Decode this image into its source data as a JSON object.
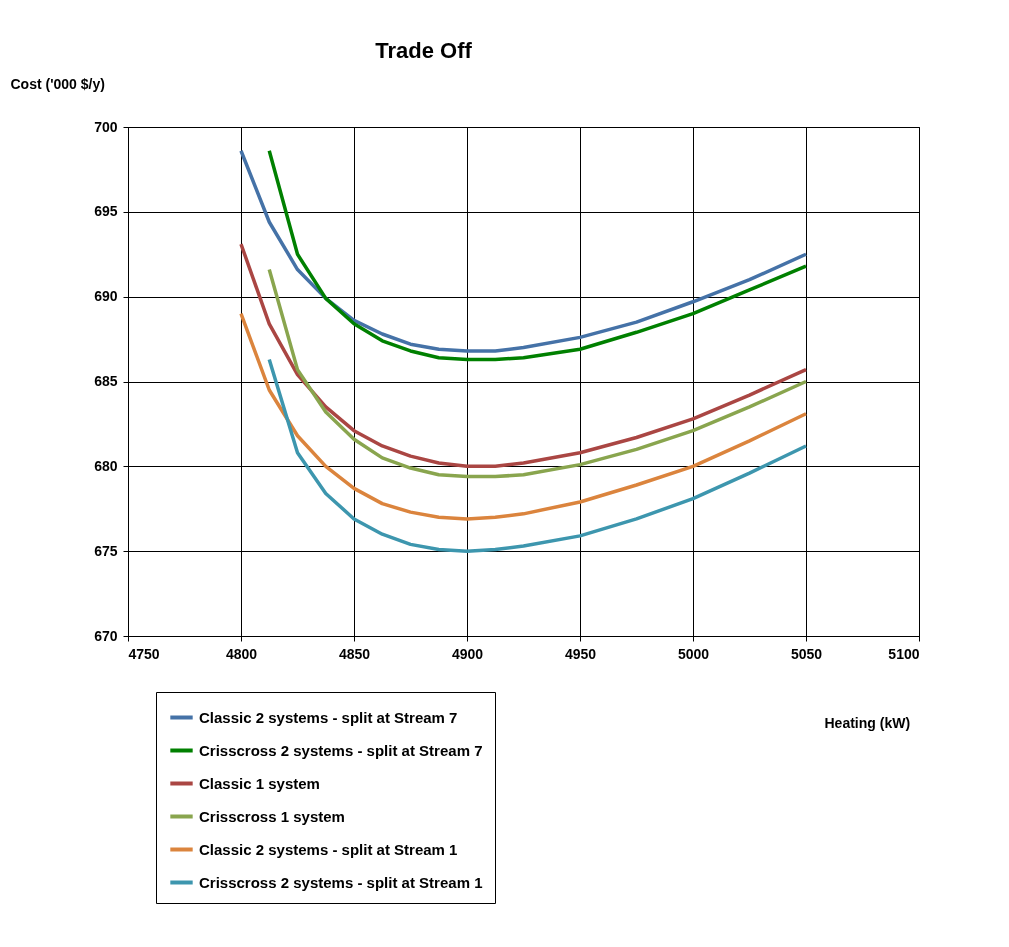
{
  "chart_data": {
    "type": "line",
    "title": "Trade Off",
    "xlabel": "Heating (kW)",
    "ylabel": "Cost ('000 $/y)",
    "xlim": [
      4750,
      5100
    ],
    "xticks": [
      4750,
      4800,
      4850,
      4900,
      4950,
      5000,
      5050,
      5100
    ],
    "ylim": [
      670,
      700
    ],
    "yticks": [
      670,
      675,
      680,
      685,
      690,
      695,
      700
    ],
    "grid": true,
    "legend": "bottom",
    "marker": "none",
    "line_style": "solid",
    "series": [
      {
        "name": "Classic 2 systems - split at Stream 7",
        "color": "#4572a7",
        "x": [
          4800,
          4812.5,
          4825,
          4837.5,
          4850,
          4862.5,
          4875,
          4887.5,
          4900,
          4912.5,
          4925,
          4950,
          4975,
          5000,
          5025,
          5050
        ],
        "values": [
          698.6,
          694.4,
          691.6,
          689.9,
          688.6,
          687.8,
          687.2,
          686.9,
          686.8,
          686.8,
          687.0,
          687.6,
          688.5,
          689.7,
          691.0,
          692.5
        ]
      },
      {
        "name": "Crisscross 2 systems - split at Stream 7",
        "color": "#008000",
        "x": [
          4812.5,
          4825,
          4837.5,
          4850,
          4862.5,
          4875,
          4887.5,
          4900,
          4912.5,
          4925,
          4950,
          4975,
          5000,
          5025,
          5050
        ],
        "values": [
          698.6,
          692.5,
          689.9,
          688.4,
          687.4,
          686.8,
          686.4,
          686.3,
          686.3,
          686.4,
          686.9,
          687.9,
          689.0,
          690.4,
          691.8
        ]
      },
      {
        "name": "Classic 1 system",
        "color": "#aa4643",
        "x": [
          4800,
          4812.5,
          4825,
          4837.5,
          4850,
          4862.5,
          4875,
          4887.5,
          4900,
          4912.5,
          4925,
          4950,
          4975,
          5000,
          5025,
          5050
        ],
        "values": [
          693.1,
          688.4,
          685.4,
          683.5,
          682.1,
          681.2,
          680.6,
          680.2,
          680.0,
          680.0,
          680.2,
          680.8,
          681.7,
          682.8,
          684.2,
          685.7
        ]
      },
      {
        "name": "Crisscross 1 system",
        "color": "#89a54e",
        "x": [
          4812.5,
          4825,
          4837.5,
          4850,
          4862.5,
          4875,
          4887.5,
          4900,
          4912.5,
          4925,
          4950,
          4975,
          5000,
          5025,
          5050
        ],
        "values": [
          691.6,
          685.7,
          683.2,
          681.6,
          680.5,
          679.9,
          679.5,
          679.4,
          679.4,
          679.5,
          680.1,
          681.0,
          682.1,
          683.5,
          685.0
        ]
      },
      {
        "name": "Classic 2 systems - split at Stream 1",
        "color": "#db843d",
        "x": [
          4800,
          4812.5,
          4825,
          4837.5,
          4850,
          4862.5,
          4875,
          4887.5,
          4900,
          4912.5,
          4925,
          4950,
          4975,
          5000,
          5025,
          5050
        ],
        "values": [
          689.0,
          684.5,
          681.8,
          680.0,
          678.7,
          677.8,
          677.3,
          677.0,
          676.9,
          677.0,
          677.2,
          677.9,
          678.9,
          680.0,
          681.5,
          683.1
        ]
      },
      {
        "name": "Crisscross 2 systems - split at Stream 1",
        "color": "#3d96ae",
        "x": [
          4812.5,
          4825,
          4837.5,
          4850,
          4862.5,
          4875,
          4887.5,
          4900,
          4912.5,
          4925,
          4950,
          4975,
          5000,
          5025,
          5050
        ],
        "values": [
          686.3,
          680.8,
          678.4,
          676.9,
          676.0,
          675.4,
          675.1,
          675.0,
          675.1,
          675.3,
          675.9,
          676.9,
          678.1,
          679.6,
          681.2
        ]
      }
    ]
  }
}
